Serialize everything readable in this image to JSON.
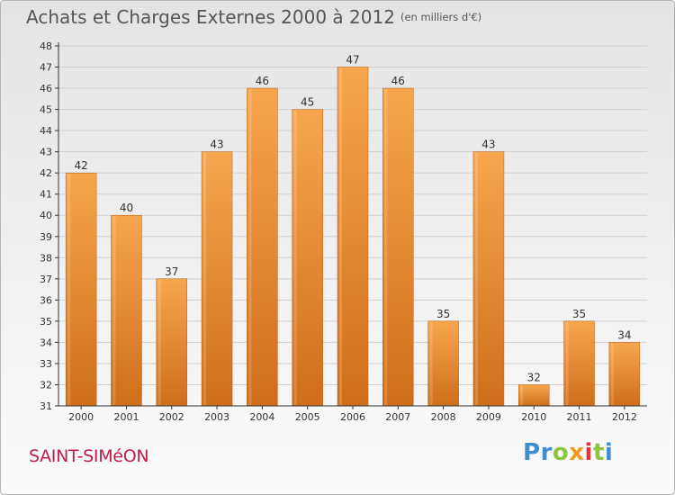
{
  "header": {
    "title": "Achats et Charges Externes 2000 à 2012",
    "unit": "(en milliers d'€)"
  },
  "footer": {
    "place": "SAINT-SIMéON",
    "logo_letters": [
      {
        "char": "P",
        "color": "#3e8fd0"
      },
      {
        "char": "r",
        "color": "#3e8fd0"
      },
      {
        "char": "o",
        "color": "#8cc63f"
      },
      {
        "char": "x",
        "color": "#f39a1e"
      },
      {
        "char": "i",
        "color": "#e6323e"
      },
      {
        "char": "t",
        "color": "#8cc63f"
      },
      {
        "char": "i",
        "color": "#3e8fd0"
      }
    ]
  },
  "colors": {
    "bar_light": "#f7a64e",
    "bar_dark": "#cf6e1a",
    "axis": "#333333",
    "grid": "#cfcfcf",
    "place_text": "#c01e4a"
  },
  "chart_data": {
    "type": "bar",
    "categories": [
      "2000",
      "2001",
      "2002",
      "2003",
      "2004",
      "2005",
      "2006",
      "2007",
      "2008",
      "2009",
      "2010",
      "2011",
      "2012"
    ],
    "values": [
      42,
      40,
      37,
      43,
      46,
      45,
      47,
      46,
      35,
      43,
      32,
      35,
      34
    ],
    "title": "Achats et Charges Externes 2000 à 2012",
    "xlabel": "",
    "ylabel": "",
    "ylim": [
      31,
      48
    ],
    "yticks": [
      31,
      32,
      33,
      34,
      35,
      36,
      37,
      38,
      39,
      40,
      41,
      42,
      43,
      44,
      45,
      46,
      47,
      48
    ],
    "grid": true,
    "data_labels": true
  }
}
